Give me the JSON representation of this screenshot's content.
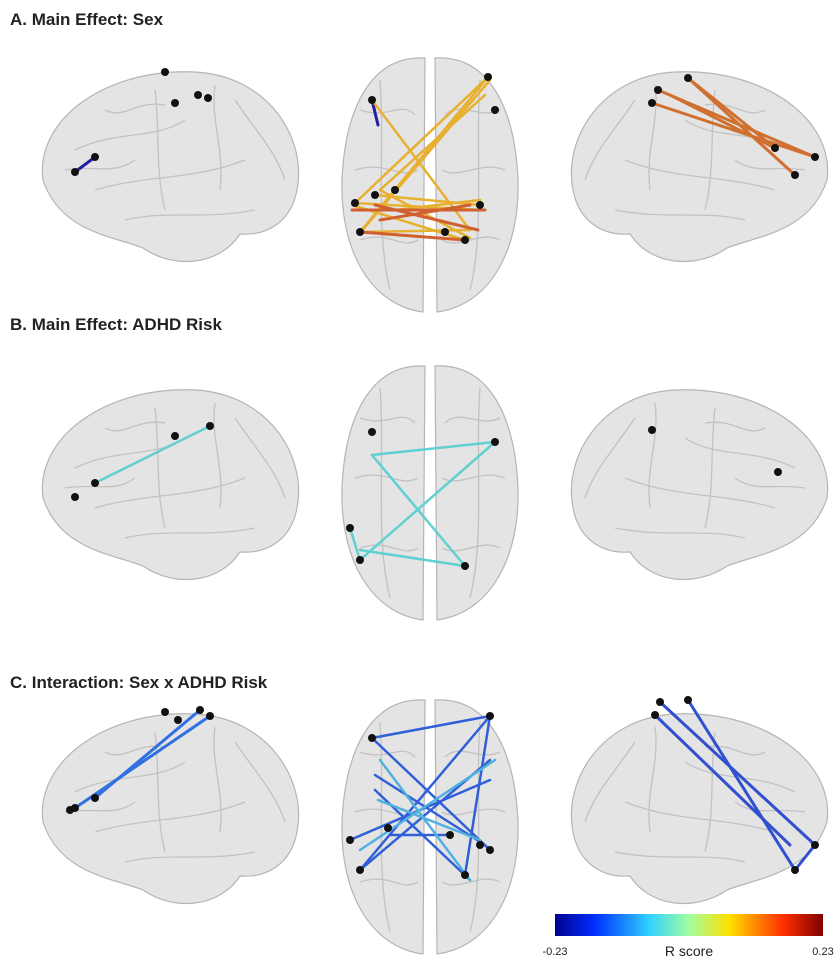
{
  "panels": [
    {
      "title": "A. Main Effect: Sex"
    },
    {
      "title": "B. Main Effect: ADHD Risk"
    },
    {
      "title": "C. Interaction: Sex x ADHD Risk"
    }
  ],
  "colorbar": {
    "min": -0.23,
    "max": 0.23,
    "label": "R score"
  }
}
